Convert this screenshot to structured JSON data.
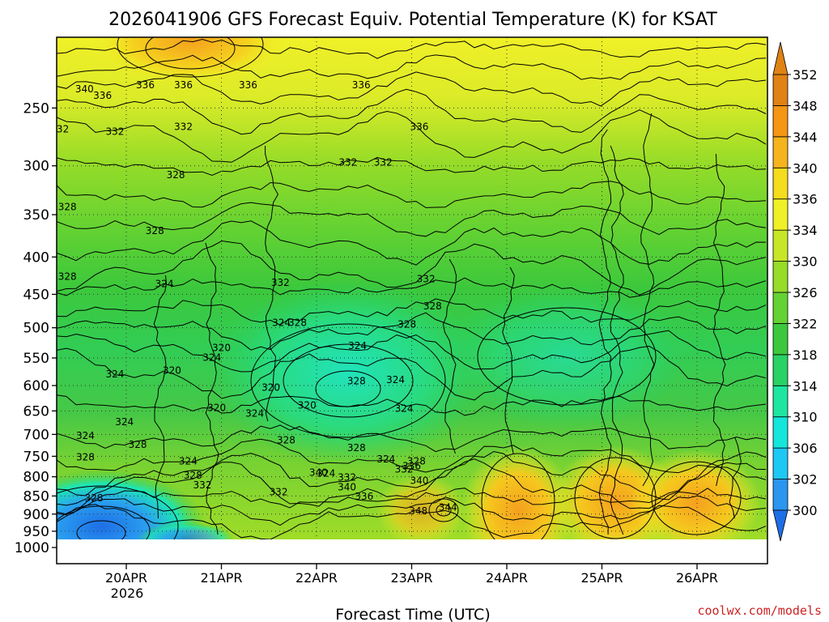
{
  "chart_data": {
    "type": "heatmap",
    "title": "2026041906 GFS Forecast Equiv. Potential Temperature (K) for KSAT",
    "xlabel": "Forecast Time (UTC)",
    "ylabel": "",
    "x_ticks": [
      "20APR",
      "21APR",
      "22APR",
      "23APR",
      "24APR",
      "25APR",
      "26APR"
    ],
    "x_year_label": "2026",
    "y_ticks": [
      250,
      300,
      350,
      400,
      450,
      500,
      550,
      600,
      650,
      700,
      750,
      800,
      850,
      900,
      950,
      1000
    ],
    "y_range": [
      200,
      1000
    ],
    "y_scale": "log-pressure",
    "grid": true,
    "colorbar": {
      "levels": [
        300,
        302,
        306,
        310,
        314,
        318,
        322,
        326,
        330,
        334,
        336,
        340,
        344,
        348,
        352
      ],
      "colors": [
        "#1e6ee6",
        "#2a96f0",
        "#1ec8f5",
        "#14e6dc",
        "#1ee6a0",
        "#28d264",
        "#3cc83c",
        "#64d232",
        "#96dc28",
        "#c8e628",
        "#f0f028",
        "#f5dc1e",
        "#f5b41e",
        "#f59614",
        "#e08214"
      ],
      "orientation": "vertical",
      "position": "right"
    },
    "contour_labels": [
      {
        "t": 0.3,
        "p": 270,
        "v": "332"
      },
      {
        "t": 0.38,
        "p": 345,
        "v": "328"
      },
      {
        "t": 0.38,
        "p": 430,
        "v": "328"
      },
      {
        "t": 0.56,
        "p": 238,
        "v": "340"
      },
      {
        "t": 0.57,
        "p": 710,
        "v": "324"
      },
      {
        "t": 0.57,
        "p": 760,
        "v": "328"
      },
      {
        "t": 0.66,
        "p": 865,
        "v": "328"
      },
      {
        "t": 0.75,
        "p": 243,
        "v": "336"
      },
      {
        "t": 0.88,
        "p": 272,
        "v": "332"
      },
      {
        "t": 0.88,
        "p": 585,
        "v": "324"
      },
      {
        "t": 0.98,
        "p": 680,
        "v": "324"
      },
      {
        "t": 1.12,
        "p": 730,
        "v": "328"
      },
      {
        "t": 1.2,
        "p": 235,
        "v": "336"
      },
      {
        "t": 1.3,
        "p": 372,
        "v": "328"
      },
      {
        "t": 1.4,
        "p": 440,
        "v": "324"
      },
      {
        "t": 1.48,
        "p": 578,
        "v": "320"
      },
      {
        "t": 1.52,
        "p": 312,
        "v": "328"
      },
      {
        "t": 1.6,
        "p": 268,
        "v": "332"
      },
      {
        "t": 1.6,
        "p": 235,
        "v": "336"
      },
      {
        "t": 1.65,
        "p": 770,
        "v": "324"
      },
      {
        "t": 1.7,
        "p": 805,
        "v": "328"
      },
      {
        "t": 1.8,
        "p": 830,
        "v": "332"
      },
      {
        "t": 1.9,
        "p": 555,
        "v": "324"
      },
      {
        "t": 1.95,
        "p": 650,
        "v": "320"
      },
      {
        "t": 2.0,
        "p": 538,
        "v": "320"
      },
      {
        "t": 2.28,
        "p": 235,
        "v": "336"
      },
      {
        "t": 2.35,
        "p": 662,
        "v": "324"
      },
      {
        "t": 2.52,
        "p": 610,
        "v": "320"
      },
      {
        "t": 2.6,
        "p": 848,
        "v": "332"
      },
      {
        "t": 2.62,
        "p": 438,
        "v": "332"
      },
      {
        "t": 2.63,
        "p": 497,
        "v": "324"
      },
      {
        "t": 2.68,
        "p": 720,
        "v": "328"
      },
      {
        "t": 2.8,
        "p": 497,
        "v": "328"
      },
      {
        "t": 2.9,
        "p": 645,
        "v": "320"
      },
      {
        "t": 3.02,
        "p": 798,
        "v": "340"
      },
      {
        "t": 3.1,
        "p": 800,
        "v": "324"
      },
      {
        "t": 3.33,
        "p": 300,
        "v": "332"
      },
      {
        "t": 3.42,
        "p": 598,
        "v": "328"
      },
      {
        "t": 3.42,
        "p": 738,
        "v": "328"
      },
      {
        "t": 3.43,
        "p": 535,
        "v": "324"
      },
      {
        "t": 3.32,
        "p": 810,
        "v": "332"
      },
      {
        "t": 3.32,
        "p": 835,
        "v": "340"
      },
      {
        "t": 3.47,
        "p": 235,
        "v": "336"
      },
      {
        "t": 3.5,
        "p": 860,
        "v": "336"
      },
      {
        "t": 3.7,
        "p": 300,
        "v": "332"
      },
      {
        "t": 3.73,
        "p": 765,
        "v": "324"
      },
      {
        "t": 3.83,
        "p": 595,
        "v": "324"
      },
      {
        "t": 3.92,
        "p": 790,
        "v": "332"
      },
      {
        "t": 3.92,
        "p": 652,
        "v": "324"
      },
      {
        "t": 3.95,
        "p": 500,
        "v": "328"
      },
      {
        "t": 4.0,
        "p": 782,
        "v": "336"
      },
      {
        "t": 4.05,
        "p": 770,
        "v": "328"
      },
      {
        "t": 4.07,
        "p": 900,
        "v": "348"
      },
      {
        "t": 4.08,
        "p": 818,
        "v": "340"
      },
      {
        "t": 4.08,
        "p": 268,
        "v": "336"
      },
      {
        "t": 4.15,
        "p": 433,
        "v": "332"
      },
      {
        "t": 4.22,
        "p": 472,
        "v": "328"
      },
      {
        "t": 4.38,
        "p": 890,
        "v": "344"
      }
    ]
  },
  "credit": "coolwx.com/models",
  "icons": [
    "colorbar-up-arrow-icon",
    "colorbar-down-arrow-icon"
  ]
}
